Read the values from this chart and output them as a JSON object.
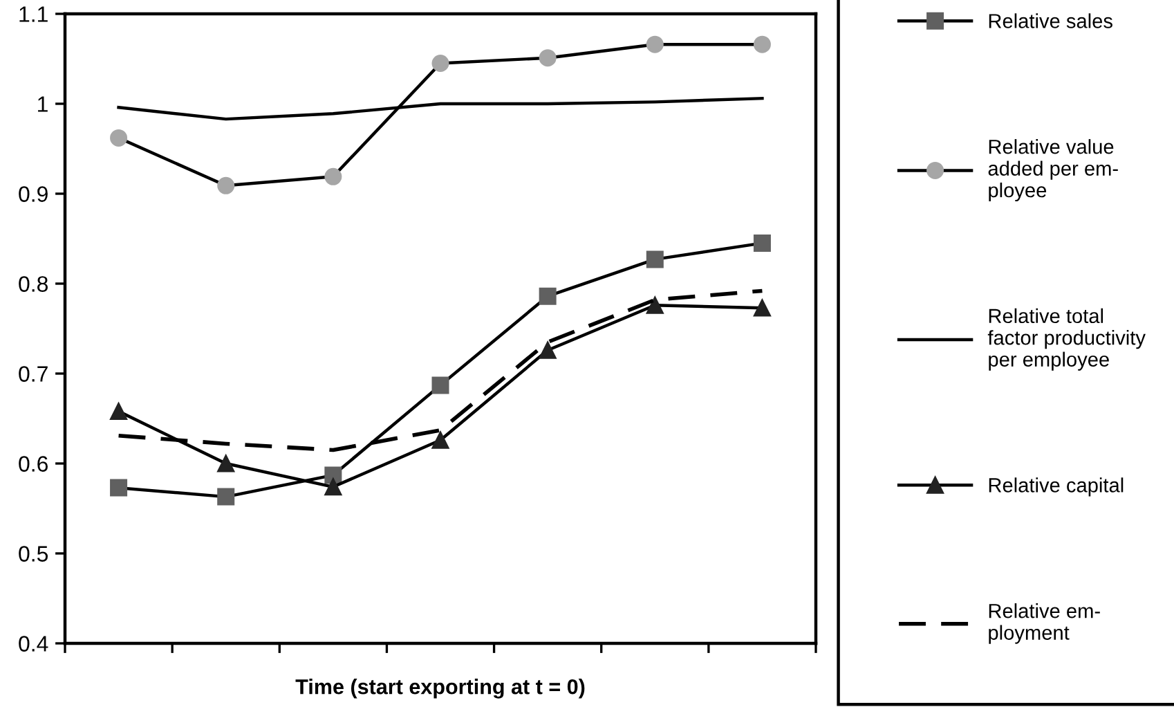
{
  "chart_data": {
    "type": "line",
    "xlabel": "Time (start exporting at t = 0)",
    "categories": [
      null,
      null,
      null,
      null,
      null,
      null,
      null
    ],
    "ylim": [
      0.4,
      1.1
    ],
    "yticks": [
      0.4,
      0.5,
      0.6,
      0.7,
      0.8,
      0.9,
      1,
      1.1
    ],
    "grid": false,
    "legend": "right",
    "series": [
      {
        "name": "Relative sales",
        "color": "#606060",
        "marker": "square",
        "line_style": "solid",
        "values": [
          0.573,
          0.563,
          0.587,
          0.687,
          0.786,
          0.827,
          0.845
        ]
      },
      {
        "name": "Relative value\nadded per em-\nployee",
        "color": "#a6a6a6",
        "marker": "circle",
        "line_style": "solid",
        "values": [
          0.962,
          0.909,
          0.919,
          1.045,
          1.051,
          1.066,
          1.066
        ]
      },
      {
        "name": "Relative total\nfactor productivity\nper employee",
        "color": "#000000",
        "marker": "none",
        "line_style": "solid",
        "values": [
          0.996,
          0.983,
          0.989,
          1.0,
          1.0,
          1.002,
          1.006
        ]
      },
      {
        "name": "Relative capital",
        "color": "#222222",
        "marker": "triangle",
        "line_style": "solid",
        "values": [
          0.658,
          0.6,
          0.574,
          0.626,
          0.726,
          0.776,
          0.773
        ]
      },
      {
        "name": "Relative em-\nployment",
        "color": "#000000",
        "marker": "none",
        "line_style": "dashed",
        "values": [
          0.631,
          0.622,
          0.615,
          0.637,
          0.735,
          0.782,
          0.792
        ]
      }
    ]
  }
}
